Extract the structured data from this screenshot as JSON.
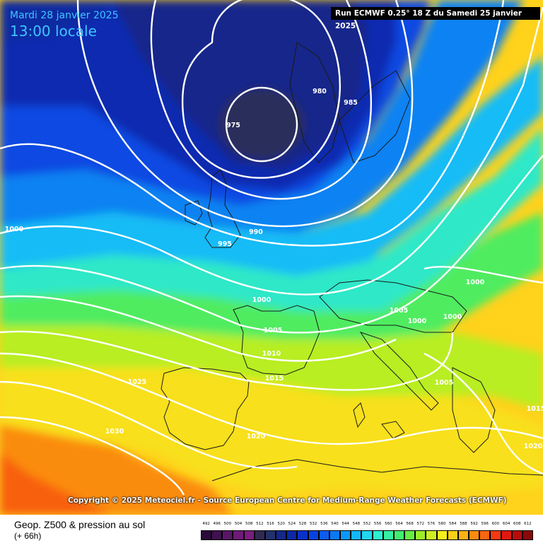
{
  "header": {
    "date": "Mardi 28 janvier 2025",
    "time": "13:00 locale",
    "run": "Run ECMWF 0.25° 18 Z du Samedi 25 janvier 2025"
  },
  "copyright": "Copyright © 2025 Meteociel.fr - Source European Centre for Medium-Range Weather Forecasts (ECMWF)",
  "legend": {
    "title": "Geop. Z500 & pression au sol",
    "subtitle": "(+ 66h)",
    "scale": [
      {
        "v": "492",
        "c": "#2b0a3a"
      },
      {
        "v": "496",
        "c": "#40104f"
      },
      {
        "v": "500",
        "c": "#591666"
      },
      {
        "v": "504",
        "c": "#6d1a78"
      },
      {
        "v": "508",
        "c": "#7b1d80"
      },
      {
        "v": "512",
        "c": "#302a52"
      },
      {
        "v": "516",
        "c": "#23306a"
      },
      {
        "v": "520",
        "c": "#13288a"
      },
      {
        "v": "524",
        "c": "#0a28a8"
      },
      {
        "v": "528",
        "c": "#0632c8"
      },
      {
        "v": "532",
        "c": "#0842e0"
      },
      {
        "v": "536",
        "c": "#0b5cf0"
      },
      {
        "v": "540",
        "c": "#0c78f4"
      },
      {
        "v": "544",
        "c": "#0c98f8"
      },
      {
        "v": "548",
        "c": "#12b8f8"
      },
      {
        "v": "552",
        "c": "#22d6f0"
      },
      {
        "v": "556",
        "c": "#2ef0d0"
      },
      {
        "v": "560",
        "c": "#34f0a0"
      },
      {
        "v": "564",
        "c": "#40ee70"
      },
      {
        "v": "568",
        "c": "#66ec44"
      },
      {
        "v": "572",
        "c": "#9cec2a"
      },
      {
        "v": "576",
        "c": "#cfee22"
      },
      {
        "v": "580",
        "c": "#f4ee1e"
      },
      {
        "v": "584",
        "c": "#f8d018"
      },
      {
        "v": "588",
        "c": "#fab012"
      },
      {
        "v": "592",
        "c": "#fa8c10"
      },
      {
        "v": "596",
        "c": "#f86610"
      },
      {
        "v": "600",
        "c": "#f43a10"
      },
      {
        "v": "604",
        "c": "#e01810"
      },
      {
        "v": "608",
        "c": "#b80c0c"
      },
      {
        "v": "612",
        "c": "#8a0808"
      }
    ]
  },
  "isobar_labels": [
    "975",
    "980",
    "985",
    "990",
    "995",
    "1000",
    "1000",
    "1000",
    "1000",
    "1005",
    "1005",
    "1010",
    "1015",
    "1020",
    "1025",
    "1030",
    "1005",
    "1000",
    "1015",
    "1020"
  ],
  "colors": {
    "land_border": "#1a1a1a",
    "isobar": "#ffffff",
    "header_text": "#3fc6ff"
  }
}
